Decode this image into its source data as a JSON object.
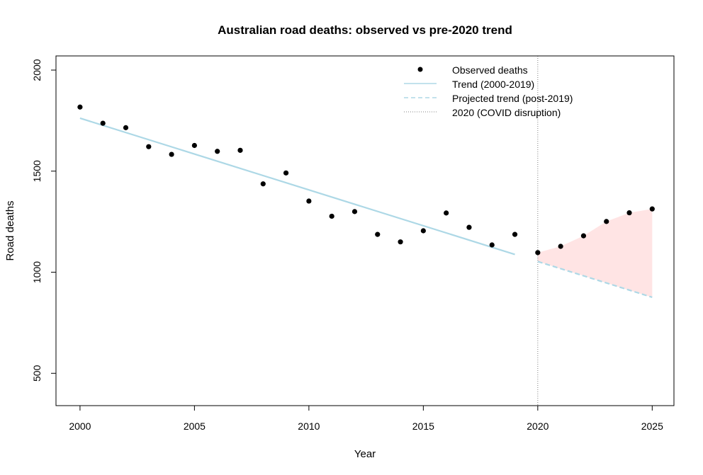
{
  "chart_data": {
    "type": "scatter",
    "title": "Australian road deaths: observed vs pre-2020 trend",
    "xlabel": "Year",
    "ylabel": "Road deaths",
    "xlim": [
      1998.95,
      2025.95
    ],
    "ylim": [
      340,
      2070
    ],
    "x_ticks": [
      2000,
      2005,
      2010,
      2015,
      2020,
      2025
    ],
    "y_ticks": [
      500,
      1000,
      1500,
      2000
    ],
    "series": [
      {
        "name": "Observed deaths",
        "style": "points",
        "x": [
          2000,
          2001,
          2002,
          2003,
          2004,
          2005,
          2006,
          2007,
          2008,
          2009,
          2010,
          2011,
          2012,
          2013,
          2014,
          2015,
          2016,
          2017,
          2018,
          2019,
          2020,
          2021,
          2022,
          2023,
          2024,
          2025
        ],
        "y": [
          1817,
          1737,
          1715,
          1621,
          1583,
          1627,
          1598,
          1603,
          1437,
          1491,
          1352,
          1277,
          1300,
          1187,
          1150,
          1205,
          1293,
          1222,
          1135,
          1187,
          1097,
          1128,
          1180,
          1251,
          1294,
          1313
        ]
      },
      {
        "name": "Trend (2000-2019)",
        "style": "solid-line",
        "x": [
          2000,
          2019
        ],
        "y": [
          1762,
          1088
        ]
      },
      {
        "name": "Projected trend (post-2019)",
        "style": "dashed-line",
        "x": [
          2020,
          2025
        ],
        "y": [
          1053,
          876
        ]
      }
    ],
    "shaded_gap": {
      "x": [
        2020,
        2021,
        2022,
        2023,
        2024,
        2025
      ],
      "upper": [
        1097,
        1128,
        1180,
        1251,
        1294,
        1313
      ],
      "lower": [
        1053,
        1017,
        982,
        947,
        911,
        876
      ]
    },
    "vline": {
      "name": "2020 (COVID disruption)",
      "x": 2020
    },
    "legend": {
      "position": "top-right",
      "entries": [
        "Observed deaths",
        "Trend (2000-2019)",
        "Projected trend (post-2019)",
        "2020 (COVID disruption)"
      ]
    },
    "colors": {
      "points": "#000000",
      "trend": "#add8e6",
      "shade": "#ffe4e4",
      "vline": "#808080",
      "frame": "#000000"
    }
  }
}
